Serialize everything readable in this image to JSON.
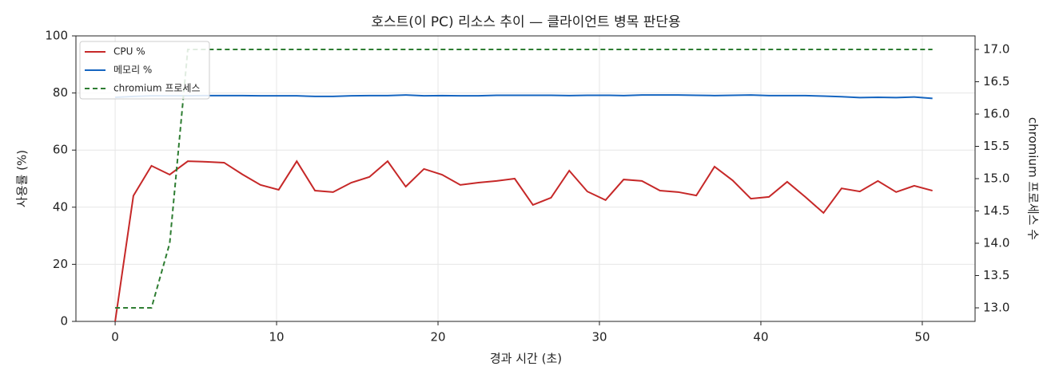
{
  "chart_data": {
    "type": "line",
    "title": "호스트(이 PC) 리소스 추이 — 클라이언트 병목 판단용",
    "xlabel": "경과 시간 (초)",
    "ylabel": "사용률 (%)",
    "y2label": "chromium 프로세스 수",
    "x": [
      0,
      1.13,
      2.25,
      3.38,
      4.5,
      5.63,
      6.75,
      7.88,
      9,
      10.13,
      11.25,
      12.38,
      13.5,
      14.63,
      15.75,
      16.88,
      18,
      19.13,
      20.25,
      21.38,
      22.5,
      23.63,
      24.75,
      25.88,
      27,
      28.13,
      29.25,
      30.38,
      31.5,
      32.63,
      33.75,
      34.88,
      36,
      37.13,
      38.25,
      39.38,
      40.5,
      41.63,
      42.75,
      43.88,
      45,
      46.13,
      47.25,
      48.38,
      49.5,
      50.63
    ],
    "series": [
      {
        "name": "CPU %",
        "color": "#c62828",
        "dashed": false,
        "values": [
          0,
          44,
          54.5,
          51.4,
          56.1,
          55.9,
          55.6,
          51.5,
          47.8,
          46.1,
          56.1,
          45.8,
          45.3,
          48.6,
          50.6,
          56.1,
          47.2,
          53.4,
          51.4,
          47.8,
          48.6,
          49.2,
          50,
          40.8,
          43.3,
          52.8,
          45.5,
          42.5,
          49.7,
          49.2,
          45.8,
          45.3,
          44.1,
          54.2,
          49.4,
          43,
          43.6,
          48.9,
          43.6,
          38,
          46.6,
          45.5,
          49.2,
          45.3,
          47.5,
          45.8
        ]
      },
      {
        "name": "메모리 %",
        "color": "#1565c0",
        "dashed": false,
        "values": [
          78.5,
          78.8,
          79.0,
          79.0,
          79.0,
          79.1,
          79.1,
          79.1,
          79.0,
          79.0,
          79.0,
          78.8,
          78.8,
          79.0,
          79.1,
          79.1,
          79.3,
          79.0,
          79.1,
          79.0,
          79.0,
          79.2,
          79.2,
          79.2,
          79.2,
          79.1,
          79.2,
          79.2,
          79.1,
          79.3,
          79.3,
          79.3,
          79.2,
          79.1,
          79.2,
          79.3,
          79.1,
          79.1,
          79.1,
          78.9,
          78.7,
          78.4,
          78.5,
          78.4,
          78.6,
          78.1
        ]
      },
      {
        "name": "chromium 프로세스",
        "color": "#2e7d32",
        "dashed": true,
        "axis": "y2",
        "values": [
          13,
          13,
          13,
          14,
          17,
          17,
          17,
          17,
          17,
          17,
          17,
          17,
          17,
          17,
          17,
          17,
          17,
          17,
          17,
          17,
          17,
          17,
          17,
          17,
          17,
          17,
          17,
          17,
          17,
          17,
          17,
          17,
          17,
          17,
          17,
          17,
          17,
          17,
          17,
          17,
          17,
          17,
          17,
          17,
          17,
          17
        ]
      }
    ],
    "xlim": [
      -2.43,
      53.27
    ],
    "xticks": [
      0,
      10,
      20,
      30,
      40,
      50
    ],
    "ylim": [
      0,
      100
    ],
    "yticks": [
      0,
      20,
      40,
      60,
      80,
      100
    ],
    "y2lim": [
      12.79,
      17.21
    ],
    "y2ticks": [
      {
        "value": 13,
        "label": "13.0"
      },
      13.5,
      {
        "value": 14,
        "label": "14.0"
      },
      14.5,
      {
        "value": 15,
        "label": "15.0"
      },
      15.5,
      {
        "value": 16,
        "label": "16.0"
      },
      16.5,
      {
        "value": 17,
        "label": "17.0"
      }
    ],
    "grid": true,
    "legend": "upper left"
  }
}
